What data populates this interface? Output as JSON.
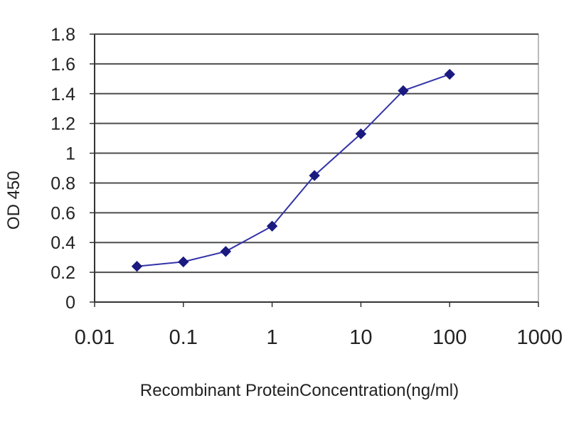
{
  "chart_data": {
    "type": "line",
    "title": "",
    "xlabel": "Recombinant ProteinConcentration(ng/ml)",
    "ylabel": "OD 450",
    "x_scale": "log",
    "xlim": [
      0.01,
      1000
    ],
    "ylim": [
      0,
      1.8
    ],
    "x_ticks": [
      "0.01",
      "0.1",
      "1",
      "10",
      "100",
      "1000"
    ],
    "y_ticks": [
      "0",
      "0.2",
      "0.4",
      "0.6",
      "0.8",
      "1",
      "1.2",
      "1.4",
      "1.6",
      "1.8"
    ],
    "grid": true,
    "legend": "none",
    "series": [
      {
        "x": [
          0.03,
          0.1,
          0.3,
          1,
          3,
          10,
          30,
          100
        ],
        "y": [
          0.24,
          0.27,
          0.34,
          0.51,
          0.85,
          1.13,
          1.42,
          1.53
        ]
      }
    ],
    "colors": {
      "line": "#3333aa",
      "marker": "#1a1a80",
      "plot_background": "#ffffff",
      "grid": "#4d4d4d",
      "plot_frame": "#777777"
    }
  }
}
